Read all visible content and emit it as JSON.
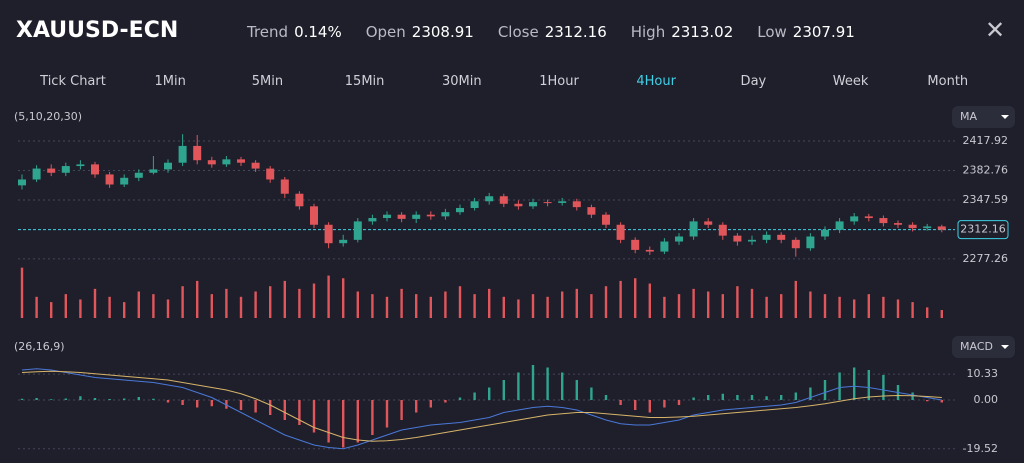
{
  "header": {
    "symbol": "XAUUSD-ECN",
    "stats": [
      {
        "label": "Trend",
        "value": "0.14%"
      },
      {
        "label": "Open",
        "value": "2308.91"
      },
      {
        "label": "Close",
        "value": "2312.16"
      },
      {
        "label": "High",
        "value": "2313.02"
      },
      {
        "label": "Low",
        "value": "2307.91"
      }
    ]
  },
  "timeframes": [
    "Tick Chart",
    "1Min",
    "5Min",
    "15Min",
    "30Min",
    "1Hour",
    "4Hour",
    "Day",
    "Week",
    "Month"
  ],
  "selected_timeframe": "4Hour",
  "chart_data": [
    {
      "type": "candlestick",
      "indicator_label": "(5,10,20,30)",
      "indicator_button": "MA",
      "ylim": [
        2270,
        2431
      ],
      "yticks": [
        2417.92,
        2382.76,
        2347.59,
        2277.26
      ],
      "grid": true,
      "current_price": 2312.16,
      "up_color": "#2fa58f",
      "down_color": "#e0565b",
      "open": [
        2365,
        2372,
        2385,
        2380,
        2388,
        2390,
        2378,
        2366,
        2374,
        2380,
        2384,
        2392,
        2412,
        2395,
        2390,
        2396,
        2392,
        2385,
        2372,
        2355,
        2340,
        2318,
        2296,
        2300,
        2322,
        2326,
        2330,
        2325,
        2330,
        2328,
        2333,
        2338,
        2346,
        2352,
        2343,
        2340,
        2345,
        2344,
        2346,
        2339,
        2330,
        2318,
        2300,
        2288,
        2286,
        2298,
        2304,
        2322,
        2318,
        2305,
        2298,
        2300,
        2306,
        2300,
        2290,
        2304,
        2312,
        2322,
        2328,
        2326,
        2320,
        2318,
        2314,
        2316
      ],
      "high": [
        2378,
        2389,
        2390,
        2392,
        2395,
        2393,
        2381,
        2378,
        2384,
        2400,
        2396,
        2426,
        2425,
        2399,
        2400,
        2399,
        2395,
        2388,
        2375,
        2358,
        2343,
        2321,
        2306,
        2326,
        2330,
        2334,
        2333,
        2334,
        2334,
        2337,
        2342,
        2350,
        2356,
        2355,
        2347,
        2349,
        2348,
        2350,
        2349,
        2342,
        2333,
        2321,
        2303,
        2292,
        2302,
        2308,
        2326,
        2326,
        2321,
        2308,
        2305,
        2310,
        2309,
        2303,
        2308,
        2316,
        2326,
        2332,
        2331,
        2329,
        2323,
        2321,
        2319,
        2318
      ],
      "low": [
        2360,
        2369,
        2376,
        2376,
        2384,
        2374,
        2362,
        2363,
        2370,
        2378,
        2380,
        2388,
        2390,
        2386,
        2387,
        2388,
        2381,
        2368,
        2350,
        2336,
        2314,
        2290,
        2292,
        2297,
        2318,
        2322,
        2321,
        2320,
        2324,
        2324,
        2330,
        2335,
        2342,
        2339,
        2336,
        2337,
        2340,
        2341,
        2335,
        2326,
        2314,
        2296,
        2284,
        2282,
        2283,
        2294,
        2300,
        2314,
        2300,
        2293,
        2294,
        2296,
        2296,
        2280,
        2287,
        2300,
        2308,
        2318,
        2322,
        2316,
        2314,
        2310,
        2311,
        2309
      ],
      "close": [
        2372,
        2385,
        2380,
        2388,
        2390,
        2378,
        2366,
        2374,
        2380,
        2384,
        2392,
        2412,
        2395,
        2390,
        2396,
        2392,
        2385,
        2372,
        2355,
        2340,
        2318,
        2296,
        2300,
        2322,
        2326,
        2330,
        2325,
        2330,
        2328,
        2333,
        2338,
        2346,
        2352,
        2343,
        2340,
        2345,
        2344,
        2346,
        2339,
        2330,
        2318,
        2300,
        2288,
        2286,
        2298,
        2304,
        2322,
        2318,
        2305,
        2298,
        2300,
        2306,
        2300,
        2290,
        2304,
        2312,
        2322,
        2328,
        2326,
        2320,
        2318,
        2314,
        2316,
        2312.16
      ],
      "volume_ylim": [
        0,
        100
      ],
      "volume_color": "#e0565b",
      "volume": [
        95,
        40,
        30,
        45,
        35,
        55,
        40,
        30,
        50,
        45,
        35,
        60,
        70,
        45,
        55,
        40,
        50,
        60,
        70,
        55,
        65,
        80,
        75,
        50,
        45,
        40,
        55,
        45,
        40,
        50,
        60,
        45,
        55,
        40,
        35,
        45,
        40,
        50,
        55,
        45,
        60,
        70,
        75,
        65,
        40,
        45,
        55,
        50,
        45,
        60,
        55,
        40,
        45,
        70,
        50,
        45,
        40,
        35,
        45,
        40,
        35,
        30,
        20,
        15
      ]
    },
    {
      "type": "macd",
      "indicator_label": "(26,16,9)",
      "indicator_button": "MACD",
      "ylim": [
        -22,
        16
      ],
      "yticks": [
        10.33,
        {
          "value": 0,
          "label": "0.00"
        },
        -19.52
      ],
      "macd_color": "#4a78d8",
      "signal_color": "#d8b46a",
      "up_color": "#2fa58f",
      "down_color": "#e0565b",
      "histogram": [
        0.5,
        0.8,
        0.3,
        0.6,
        1.5,
        0.8,
        0.4,
        0.6,
        1.2,
        0.5,
        -1,
        -2,
        -3,
        -2.5,
        -3.5,
        -4,
        -5,
        -6,
        -8,
        -10,
        -13,
        -17,
        -19,
        -17,
        -14,
        -11,
        -8,
        -5,
        -3,
        -1,
        1,
        3,
        5,
        8,
        11,
        14,
        13,
        11,
        8,
        5,
        2,
        -2,
        -4,
        -5,
        -3,
        -2,
        1,
        2,
        2.5,
        2,
        2,
        1.5,
        2,
        3,
        5,
        8,
        11,
        13,
        12,
        10,
        6,
        3,
        -0.5,
        -1
      ],
      "macd": [
        12,
        12.5,
        12,
        11,
        10,
        9,
        8.5,
        8,
        7.5,
        7,
        6,
        5,
        3,
        1,
        -2,
        -5,
        -8,
        -11,
        -14,
        -16,
        -18,
        -19,
        -19.5,
        -18,
        -16,
        -14,
        -12,
        -11,
        -10,
        -9.5,
        -9,
        -8,
        -7,
        -5,
        -4,
        -3,
        -2.5,
        -3,
        -4,
        -6,
        -8,
        -9.5,
        -10,
        -10,
        -9,
        -8,
        -6,
        -5,
        -4,
        -3.5,
        -3,
        -2.5,
        -2,
        -1,
        1,
        3,
        5,
        5.5,
        5,
        4,
        3,
        2,
        1,
        0
      ],
      "signal": [
        11,
        11.3,
        11.5,
        11.3,
        11,
        10.5,
        10,
        9.5,
        9,
        8.5,
        8,
        7,
        6,
        5,
        4,
        2.5,
        0.5,
        -2,
        -5,
        -8,
        -11,
        -13,
        -15,
        -16,
        -16.5,
        -16.3,
        -15.8,
        -15,
        -14,
        -13,
        -12,
        -11,
        -10,
        -9,
        -8,
        -7,
        -6,
        -5.5,
        -5,
        -5,
        -5.5,
        -6,
        -6.5,
        -7,
        -7,
        -6.8,
        -6.5,
        -6,
        -5.5,
        -5,
        -4.5,
        -4,
        -3.5,
        -3,
        -2.3,
        -1.5,
        -0.5,
        0.5,
        1.2,
        1.6,
        1.8,
        1.7,
        1.4,
        1
      ]
    }
  ]
}
